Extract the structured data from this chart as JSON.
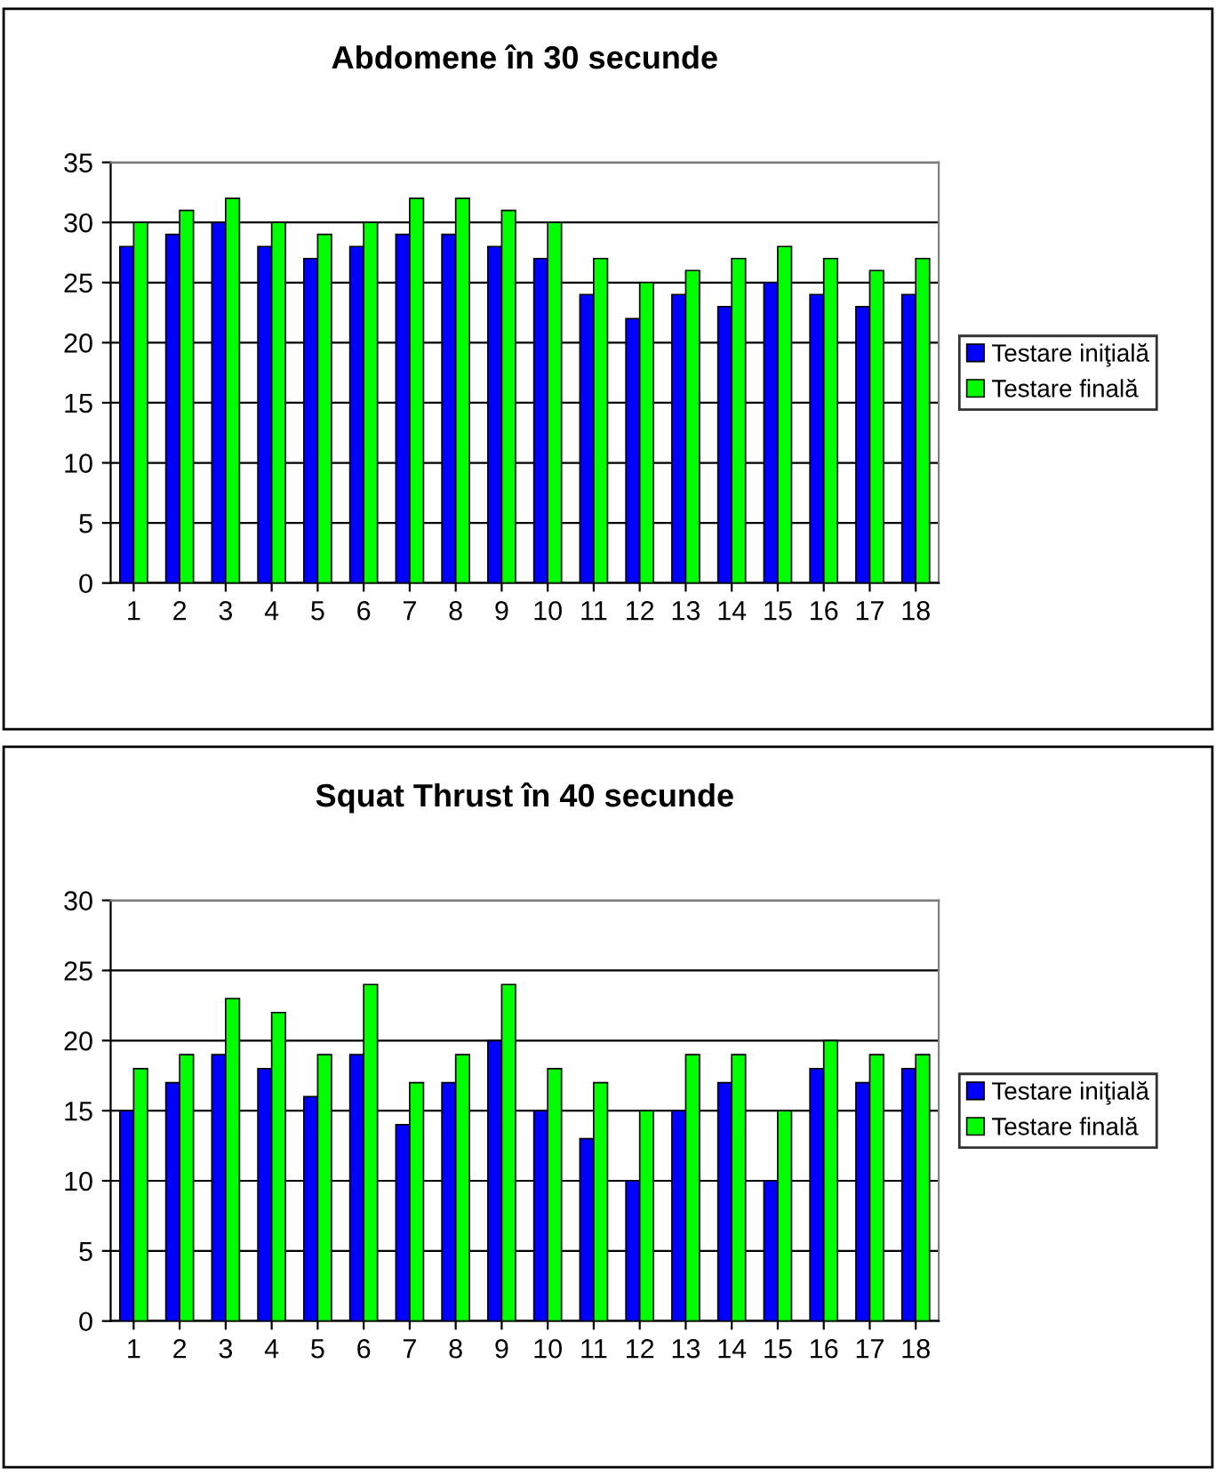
{
  "chart_data": [
    {
      "type": "bar",
      "title": "Abdomene în 30 secunde",
      "categories": [
        "1",
        "2",
        "3",
        "4",
        "5",
        "6",
        "7",
        "8",
        "9",
        "10",
        "11",
        "12",
        "13",
        "14",
        "15",
        "16",
        "17",
        "18"
      ],
      "series": [
        {
          "name": "Testare iniţială",
          "color": "#0000ff",
          "values": [
            28,
            29,
            30,
            28,
            27,
            28,
            29,
            29,
            28,
            27,
            24,
            22,
            24,
            23,
            25,
            24,
            23,
            24
          ]
        },
        {
          "name": "Testare finală",
          "color": "#00ff00",
          "values": [
            30,
            31,
            32,
            30,
            29,
            30,
            32,
            32,
            31,
            30,
            27,
            25,
            26,
            27,
            28,
            27,
            26,
            27
          ]
        }
      ],
      "ylim": [
        0,
        35
      ],
      "yticks": [
        0,
        5,
        10,
        15,
        20,
        25,
        30,
        35
      ],
      "grid": "y",
      "legend": "right"
    },
    {
      "type": "bar",
      "title": "Squat Thrust în 40 secunde",
      "categories": [
        "1",
        "2",
        "3",
        "4",
        "5",
        "6",
        "7",
        "8",
        "9",
        "10",
        "11",
        "12",
        "13",
        "14",
        "15",
        "16",
        "17",
        "18"
      ],
      "series": [
        {
          "name": "Testare iniţială",
          "color": "#0000ff",
          "values": [
            15,
            17,
            19,
            18,
            16,
            19,
            14,
            17,
            20,
            15,
            13,
            10,
            15,
            17,
            10,
            18,
            17,
            18
          ]
        },
        {
          "name": "Testare finală",
          "color": "#00ff00",
          "values": [
            18,
            19,
            23,
            22,
            19,
            24,
            17,
            19,
            24,
            18,
            17,
            15,
            19,
            19,
            15,
            20,
            19,
            19
          ]
        }
      ],
      "ylim": [
        0,
        30
      ],
      "yticks": [
        0,
        5,
        10,
        15,
        20,
        25,
        30
      ],
      "grid": "y",
      "legend": "right"
    }
  ]
}
